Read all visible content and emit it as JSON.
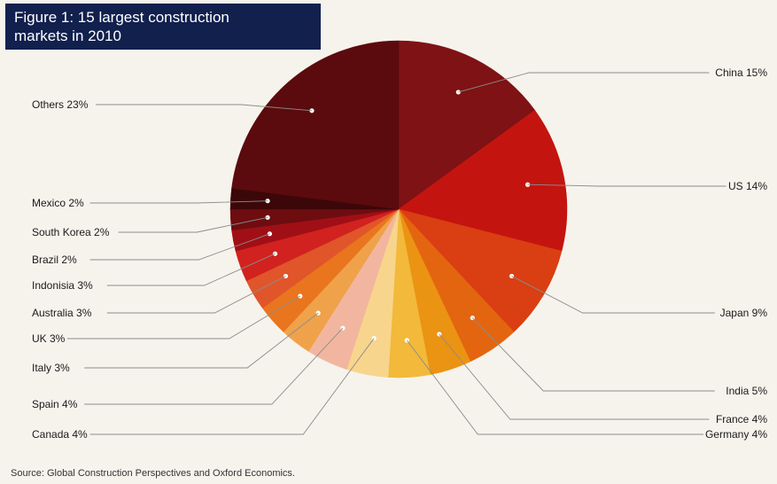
{
  "header": {
    "title_line1": "Figure 1: 15 largest construction",
    "title_line2": "markets in 2010"
  },
  "footer": {
    "source": "Source: Global Construction Perspectives and Oxford Economics."
  },
  "chart_data": {
    "type": "pie",
    "title": "Figure 1: 15 largest construction markets in 2010",
    "slices": [
      {
        "label": "China 15%",
        "name": "China",
        "value": 15,
        "color": "#7f1214"
      },
      {
        "label": "US 14%",
        "name": "US",
        "value": 14,
        "color": "#c4140f"
      },
      {
        "label": "Japan 9%",
        "name": "Japan",
        "value": 9,
        "color": "#d93f12"
      },
      {
        "label": "India 5%",
        "name": "India",
        "value": 5,
        "color": "#e4650f"
      },
      {
        "label": "France 4%",
        "name": "France",
        "value": 4,
        "color": "#eb9312"
      },
      {
        "label": "Germany 4%",
        "name": "Germany",
        "value": 4,
        "color": "#f2b93a"
      },
      {
        "label": "Canada 4%",
        "name": "Canada",
        "value": 4,
        "color": "#f8d58c"
      },
      {
        "label": "Spain 4%",
        "name": "Spain",
        "value": 4,
        "color": "#f2b6a0"
      },
      {
        "label": "Italy 3%",
        "name": "Italy",
        "value": 3,
        "color": "#f0a24a"
      },
      {
        "label": "UK 3%",
        "name": "UK",
        "value": 3,
        "color": "#e9751f"
      },
      {
        "label": "Australia 3%",
        "name": "Australia",
        "value": 3,
        "color": "#e1552a"
      },
      {
        "label": "Indonisia 3%",
        "name": "Indonisia",
        "value": 3,
        "color": "#d1221f"
      },
      {
        "label": "Brazil 2%",
        "name": "Brazil",
        "value": 2,
        "color": "#a10f16"
      },
      {
        "label": "South Korea 2%",
        "name": "South Korea",
        "value": 2,
        "color": "#6e0d10"
      },
      {
        "label": "Mexico 2%",
        "name": "Mexico",
        "value": 2,
        "color": "#3c0708"
      },
      {
        "label": "Others 23%",
        "name": "Others",
        "value": 23,
        "color": "#5b0b0d"
      }
    ],
    "start": "top",
    "direction": "clockwise",
    "legend": "none",
    "labels": "outside with leader lines"
  }
}
